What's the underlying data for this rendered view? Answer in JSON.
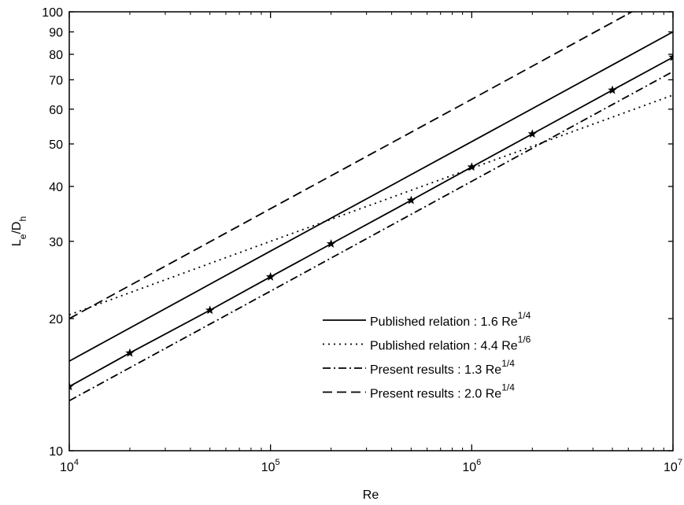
{
  "chart_data": {
    "type": "line",
    "xlabel": "Re",
    "ylabel_parts": [
      {
        "text": "L"
      },
      {
        "text": "e",
        "sub": true
      },
      {
        "text": "/D"
      },
      {
        "text": "h",
        "sub": true
      }
    ],
    "xscale": "log",
    "yscale": "log",
    "xlim": [
      10000,
      10000000
    ],
    "ylim": [
      10,
      100
    ],
    "xticks": [
      {
        "value": 10000,
        "label": "10",
        "sup": "4"
      },
      {
        "value": 100000,
        "label": "10",
        "sup": "5"
      },
      {
        "value": 1000000,
        "label": "10",
        "sup": "6"
      },
      {
        "value": 10000000,
        "label": "10",
        "sup": "7"
      }
    ],
    "xminorticks": [
      20000,
      30000,
      40000,
      50000,
      60000,
      70000,
      80000,
      90000,
      200000,
      300000,
      400000,
      500000,
      600000,
      700000,
      800000,
      900000,
      2000000,
      3000000,
      4000000,
      5000000,
      6000000,
      7000000,
      8000000,
      9000000
    ],
    "yticks": [
      10,
      20,
      30,
      40,
      50,
      60,
      70,
      80,
      90,
      100
    ],
    "legend": "lower right",
    "series": [
      {
        "name": "Published relation : 1.6 Re",
        "name_sup": "1/4",
        "color": "#000000",
        "dash": "solid",
        "x": [
          10000,
          100000,
          1000000,
          10000000
        ],
        "values": [
          16,
          28.5,
          50.6,
          90
        ]
      },
      {
        "name": "Published relation : 4.4 Re",
        "name_sup": "1/6",
        "color": "#000000",
        "dash": "dotted",
        "x": [
          10000,
          100000,
          1000000,
          10000000
        ],
        "values": [
          20.4,
          30,
          44,
          64.6
        ]
      },
      {
        "name": "Present results : 1.3 Re",
        "name_sup": "1/4",
        "color": "#000000",
        "dash": "dashdot",
        "x": [
          10000,
          100000,
          1000000,
          10000000
        ],
        "values": [
          13,
          23.1,
          41.1,
          73.1
        ]
      },
      {
        "name": "Present results : 2.0 Re",
        "name_sup": "1/4",
        "color": "#000000",
        "dash": "dashed",
        "x": [
          10000,
          100000,
          1000000,
          10000000
        ],
        "values": [
          20,
          35.6,
          63.2,
          112.5
        ]
      },
      {
        "color": "#000000",
        "dash": "solid",
        "marker": "star",
        "x": [
          10000,
          20000,
          50000,
          100000,
          200000,
          500000,
          1000000,
          2000000,
          5000000,
          10000000
        ],
        "values": [
          14,
          16.7,
          20.9,
          24.9,
          29.6,
          37.2,
          44.3,
          52.7,
          66.3,
          78.8
        ]
      }
    ]
  }
}
